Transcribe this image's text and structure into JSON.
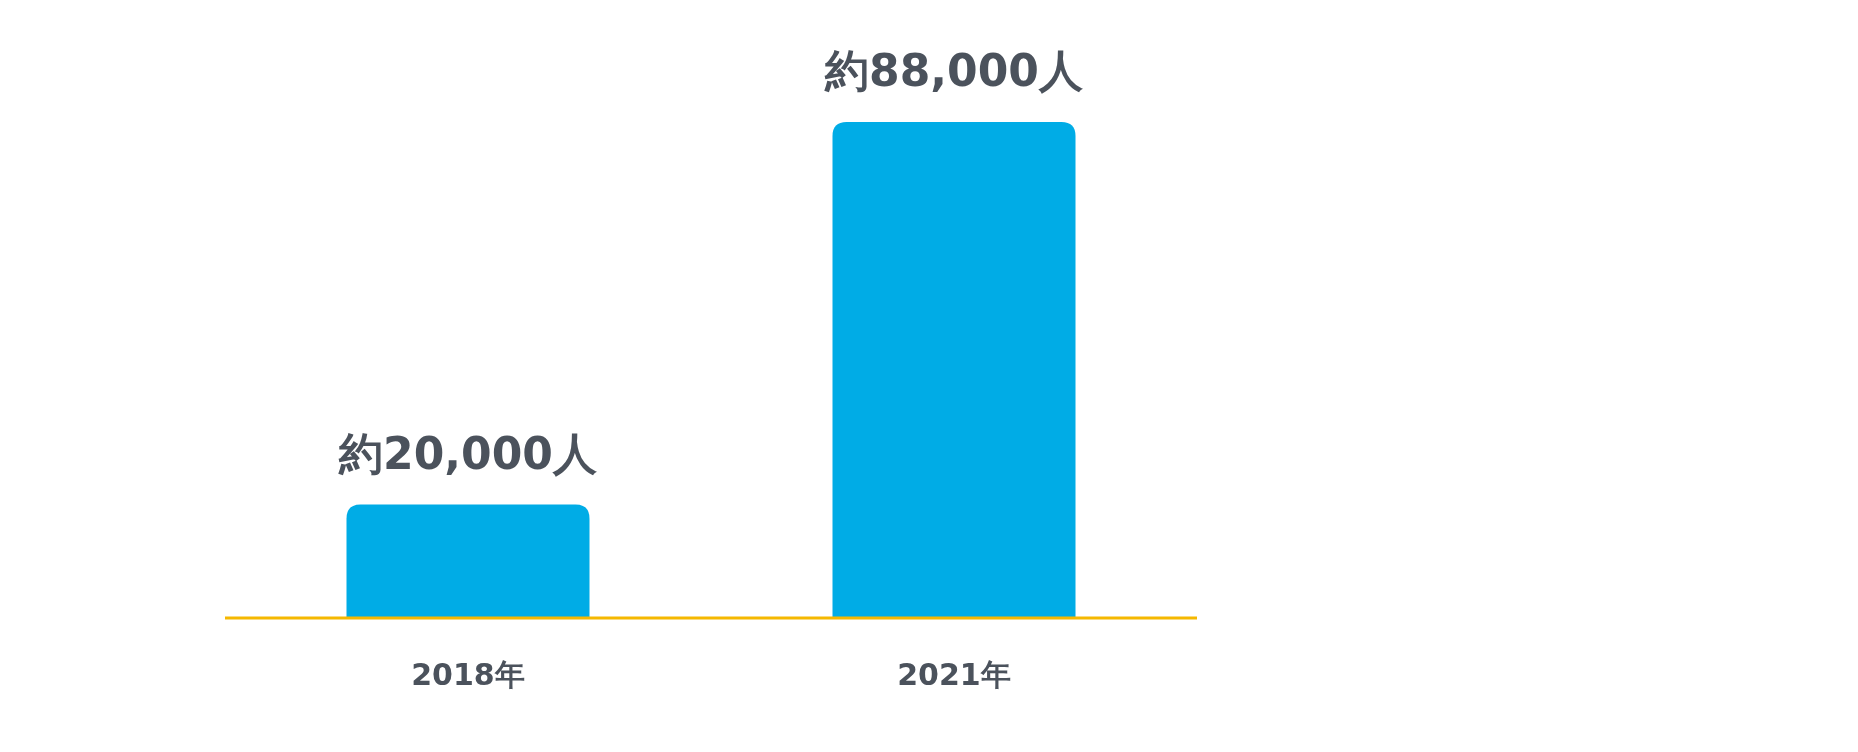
{
  "chart_data": {
    "type": "bar",
    "categories": [
      "2018年",
      "2021年"
    ],
    "values": [
      20000,
      88000
    ],
    "color": "#00ace6",
    "value_labels": [
      "約20,000人",
      "約88,000人"
    ]
  }
}
